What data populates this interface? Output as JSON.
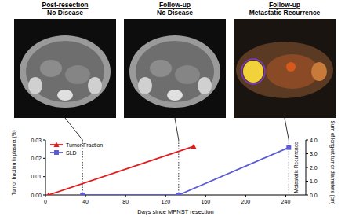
{
  "panels": [
    {
      "title": "Post-resection",
      "subtitle": "No Disease"
    },
    {
      "title": "Follow-up",
      "subtitle": "No Disease"
    },
    {
      "title": "Follow-up",
      "subtitle": "Metastatic Recurrence"
    }
  ],
  "chart_data": {
    "type": "line",
    "x_label": "Days since MPNST resection",
    "y_label": "Tumor fraction in plasma (%)",
    "y2_label": "Sum of longest tumor diameters (cm)",
    "annotation": "Metastatic Recurrence",
    "xlim": [
      0,
      260
    ],
    "xticks": [
      0,
      40,
      80,
      120,
      160,
      200,
      240
    ],
    "ylim": [
      0,
      0.03
    ],
    "yticks": [
      {
        "value": 0,
        "label": "0.00"
      },
      {
        "value": 0.01,
        "label": "0.01"
      },
      {
        "value": 0.02,
        "label": "0.02"
      },
      {
        "value": 0.03,
        "label": "0.03"
      }
    ],
    "y2lim": [
      0,
      4
    ],
    "y2ticks": [
      {
        "value": 0,
        "label": "0.0"
      },
      {
        "value": 1,
        "label": "1.0"
      },
      {
        "value": 2,
        "label": "2.0"
      },
      {
        "value": 3,
        "label": "3.0"
      },
      {
        "value": 4,
        "label": "4.0"
      }
    ],
    "legend": "upper left",
    "series": [
      {
        "name": "Tumor Fraction",
        "color": "#e3191c",
        "marker": "triangle",
        "x": [
          3,
          148
        ],
        "values": [
          0,
          0.0265
        ]
      },
      {
        "name": "SLD",
        "color": "#5c5cd8",
        "marker": "square",
        "axis": "y2",
        "x": [
          37,
          133,
          243
        ],
        "values": [
          0,
          0,
          3.45
        ]
      }
    ]
  }
}
